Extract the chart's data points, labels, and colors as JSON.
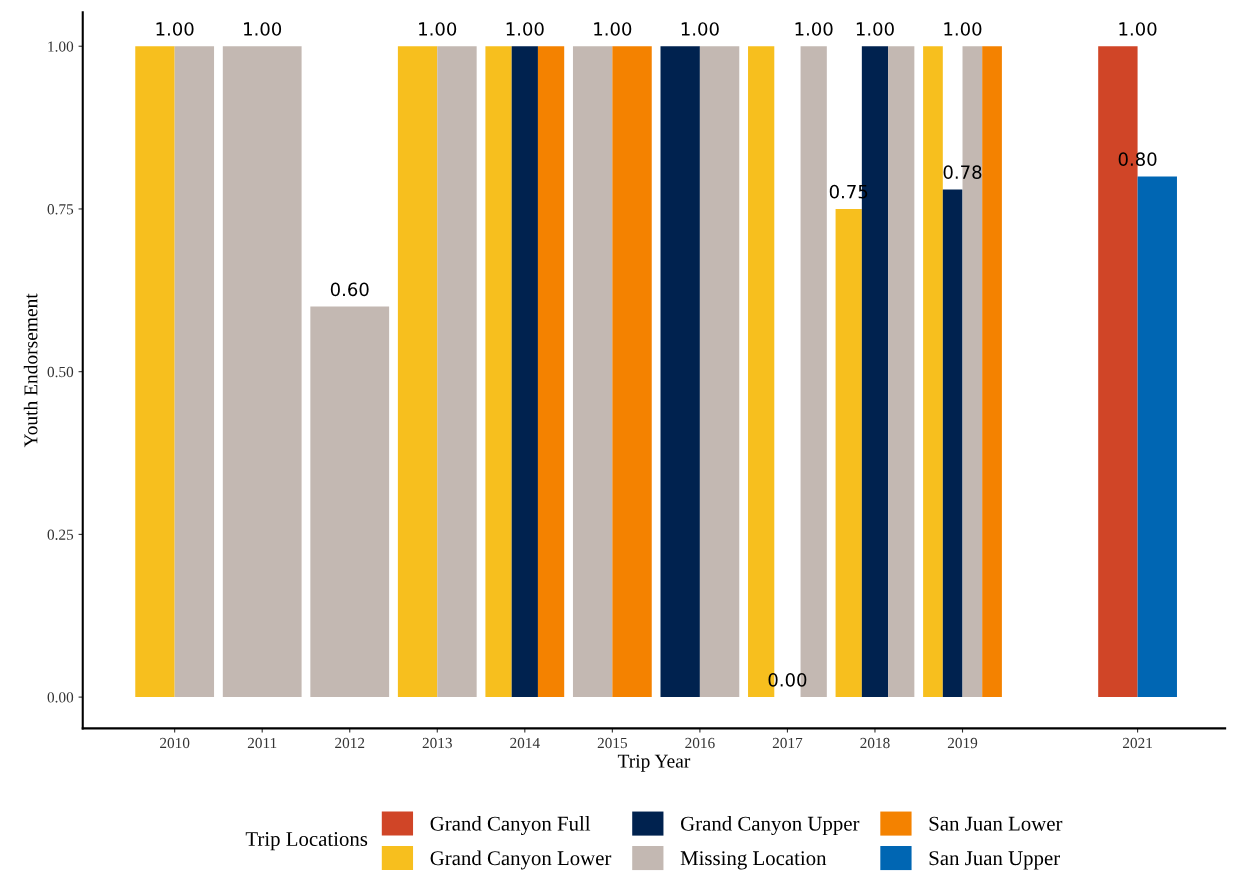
{
  "chart_data": {
    "type": "bar",
    "xlabel": "Trip Year",
    "ylabel": "Youth Endorsement",
    "legend_title": "Trip Locations",
    "x": [
      2010,
      2011,
      2012,
      2013,
      2014,
      2015,
      2016,
      2017,
      2018,
      2019,
      2021
    ],
    "xlim": [
      2008.95,
      2022.0
    ],
    "xticks": [
      2010,
      2011,
      2012,
      2013,
      2014,
      2015,
      2016,
      2017,
      2018,
      2019,
      2021
    ],
    "ylim": [
      -0.048,
      1.052
    ],
    "yticks": [
      {
        "value": 0,
        "label": "0.00"
      },
      {
        "value": 0.25,
        "label": "0.25"
      },
      {
        "value": 0.5,
        "label": "0.50"
      },
      {
        "value": 0.75,
        "label": "0.75"
      },
      {
        "value": 1,
        "label": "1.00"
      }
    ],
    "series": [
      {
        "name": "Grand Canyon Full",
        "color": "#d04527",
        "values": [
          null,
          null,
          null,
          null,
          null,
          null,
          null,
          null,
          null,
          null,
          1.0
        ]
      },
      {
        "name": "Grand Canyon Lower",
        "color": "#f7bf1e",
        "values": [
          1.0,
          null,
          null,
          1.0,
          1.0,
          null,
          null,
          1.0,
          0.75,
          1.0,
          null
        ]
      },
      {
        "name": "Grand Canyon Upper",
        "color": "#00224f",
        "values": [
          null,
          null,
          null,
          null,
          1.0,
          null,
          1.0,
          0.0,
          1.0,
          0.78,
          null
        ]
      },
      {
        "name": "Missing Location",
        "color": "#c3b8b2",
        "values": [
          1.0,
          1.0,
          0.6,
          1.0,
          null,
          1.0,
          1.0,
          1.0,
          1.0,
          1.0,
          null
        ]
      },
      {
        "name": "San Juan Lower",
        "color": "#f48200",
        "values": [
          null,
          null,
          null,
          null,
          1.0,
          1.0,
          null,
          null,
          null,
          1.0,
          null
        ]
      },
      {
        "name": "San Juan Upper",
        "color": "#0066b3",
        "values": [
          null,
          null,
          null,
          null,
          null,
          null,
          null,
          null,
          null,
          null,
          0.8
        ]
      }
    ],
    "annotations": [
      {
        "text": "1.00",
        "x": 2010,
        "y": 1.0
      },
      {
        "text": "1.00",
        "x": 2011,
        "y": 1.0
      },
      {
        "text": "0.60",
        "x": 2012,
        "y": 0.6
      },
      {
        "text": "1.00",
        "x": 2013,
        "y": 1.0
      },
      {
        "text": "1.00",
        "x": 2014,
        "y": 1.0
      },
      {
        "text": "1.00",
        "x": 2015,
        "y": 1.0
      },
      {
        "text": "1.00",
        "x": 2016,
        "y": 1.0
      },
      {
        "text": "1.00",
        "x": 2017.3,
        "y": 1.0
      },
      {
        "text": "0.00",
        "x": 2017,
        "y": 0.0
      },
      {
        "text": "1.00",
        "x": 2018,
        "y": 1.0
      },
      {
        "text": "0.75",
        "x": 2017.7,
        "y": 0.75
      },
      {
        "text": "1.00",
        "x": 2019,
        "y": 1.0
      },
      {
        "text": "0.78",
        "x": 2019,
        "y": 0.78
      },
      {
        "text": "1.00",
        "x": 2021,
        "y": 1.0
      },
      {
        "text": "0.80",
        "x": 2021,
        "y": 0.8
      }
    ],
    "legend": "bottom",
    "grid": false
  }
}
